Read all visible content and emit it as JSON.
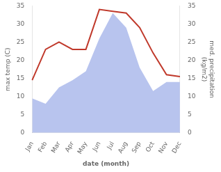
{
  "chart_data": {
    "type": "line",
    "xlabel": "date (month)",
    "ylabel": "max temp (C)",
    "y2label": "med. precipitation\n(kg/m2)",
    "categories": [
      "Jan",
      "Feb",
      "Mar",
      "Apr",
      "May",
      "Jun",
      "Jul",
      "Aug",
      "Sep",
      "Oct",
      "Nov",
      "Dec"
    ],
    "series": [
      {
        "type": "line",
        "color": "#c0392b",
        "values": [
          14.5,
          23.0,
          25.0,
          23.0,
          23.0,
          34.0,
          33.5,
          33.0,
          29.0,
          22.0,
          16.0,
          15.5
        ]
      },
      {
        "type": "area",
        "axis": "y2",
        "color": "#b8c4ee",
        "values": [
          9.5,
          8.0,
          12.5,
          14.5,
          17.0,
          26.0,
          33.0,
          29.0,
          18.0,
          11.5,
          14.0,
          14.0
        ]
      }
    ],
    "ylim": [
      0,
      35
    ],
    "yticks": [
      0,
      5,
      10,
      15,
      20,
      25,
      30,
      35
    ],
    "y2lim": [
      0,
      35
    ],
    "y2ticks": [
      0,
      5,
      10,
      15,
      20,
      25,
      30,
      35
    ],
    "grid": false
  }
}
